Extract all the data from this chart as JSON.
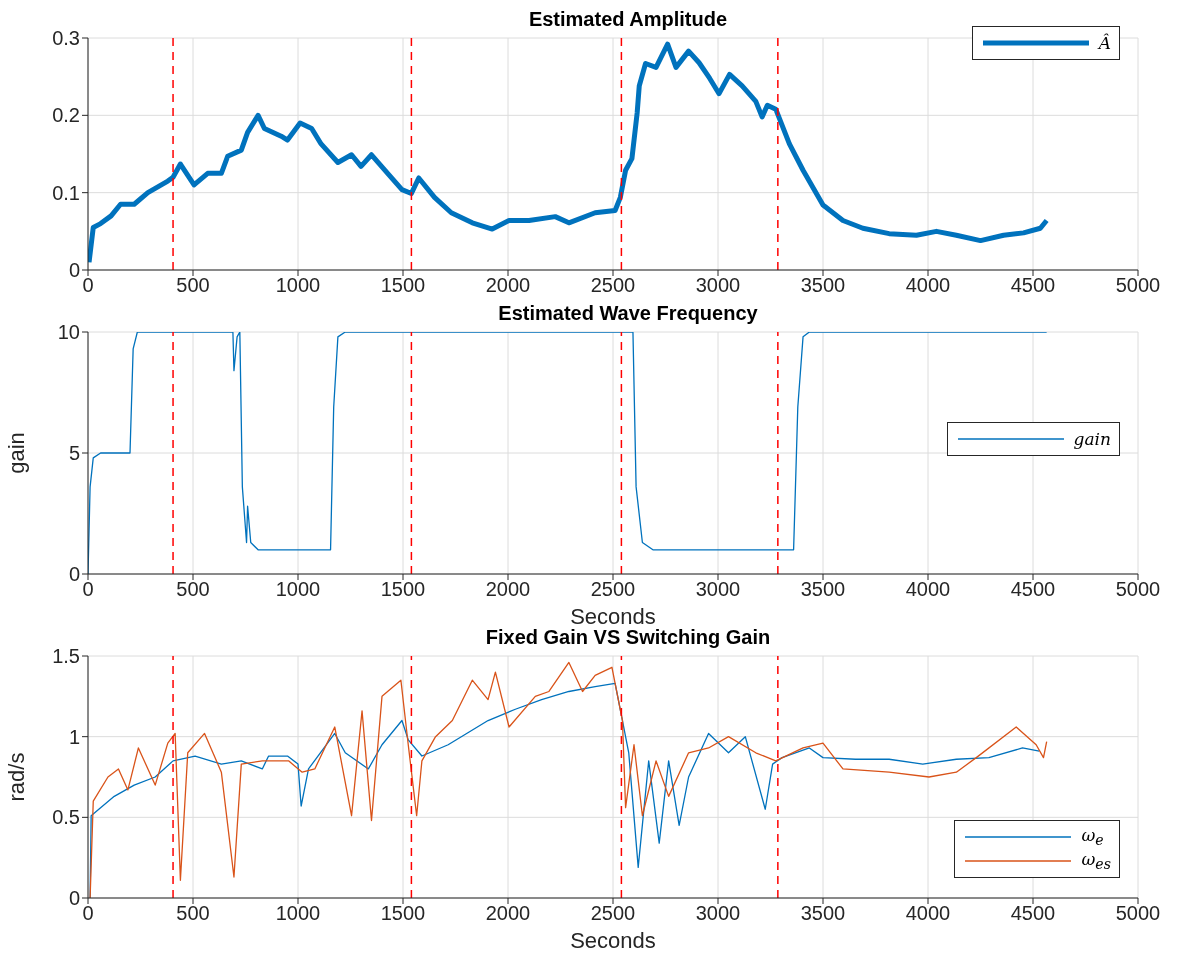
{
  "chart_data": [
    {
      "type": "line",
      "title": "Estimated Amplitude",
      "xlim": [
        0,
        5000
      ],
      "xticks": [
        0,
        500,
        1000,
        1500,
        2000,
        2500,
        3000,
        3500,
        4000,
        4500,
        5000
      ],
      "ylim": [
        0,
        0.3
      ],
      "yticks": [
        0,
        0.1,
        0.2,
        0.3
      ],
      "grid": true,
      "legend": "top right",
      "line_style": "solid",
      "ref_lines": [
        {
          "axis": "x",
          "value": 405,
          "color": "#ff0000",
          "line_style": "dashed"
        },
        {
          "axis": "x",
          "value": 1540,
          "color": "#ff0000",
          "line_style": "dashed"
        },
        {
          "axis": "x",
          "value": 2540,
          "color": "#ff0000",
          "line_style": "dashed"
        },
        {
          "axis": "x",
          "value": 3285,
          "color": "#ff0000",
          "line_style": "dashed"
        }
      ],
      "series": [
        {
          "name": "Â",
          "color": "#0072bd",
          "x": [
            5,
            25,
            60,
            110,
            155,
            220,
            285,
            380,
            405,
            440,
            505,
            570,
            635,
            665,
            730,
            760,
            810,
            840,
            920,
            950,
            1010,
            1065,
            1110,
            1190,
            1255,
            1300,
            1350,
            1430,
            1495,
            1540,
            1575,
            1650,
            1730,
            1830,
            1925,
            2005,
            2100,
            2225,
            2290,
            2415,
            2510,
            2535,
            2560,
            2590,
            2615,
            2625,
            2655,
            2705,
            2760,
            2800,
            2860,
            2910,
            2960,
            3005,
            3055,
            3115,
            3180,
            3210,
            3235,
            3275,
            3340,
            3405,
            3500,
            3595,
            3690,
            3815,
            3945,
            4040,
            4135,
            4250,
            4360,
            4455,
            4535,
            4565
          ],
          "values": [
            0.01,
            0.055,
            0.06,
            0.07,
            0.085,
            0.085,
            0.1,
            0.115,
            0.12,
            0.137,
            0.11,
            0.125,
            0.125,
            0.147,
            0.155,
            0.178,
            0.2,
            0.183,
            0.173,
            0.168,
            0.19,
            0.183,
            0.163,
            0.139,
            0.149,
            0.134,
            0.149,
            0.124,
            0.104,
            0.099,
            0.119,
            0.094,
            0.074,
            0.061,
            0.053,
            0.064,
            0.064,
            0.069,
            0.061,
            0.074,
            0.077,
            0.094,
            0.129,
            0.144,
            0.203,
            0.238,
            0.267,
            0.262,
            0.292,
            0.262,
            0.283,
            0.268,
            0.248,
            0.228,
            0.253,
            0.238,
            0.218,
            0.198,
            0.213,
            0.208,
            0.163,
            0.129,
            0.084,
            0.064,
            0.054,
            0.047,
            0.045,
            0.05,
            0.045,
            0.038,
            0.045,
            0.048,
            0.054,
            0.064
          ]
        }
      ]
    },
    {
      "type": "line",
      "title": "Estimated Wave Frequency",
      "xlabel": "Seconds",
      "ylabel": "gain",
      "xlim": [
        0,
        5000
      ],
      "xticks": [
        0,
        500,
        1000,
        1500,
        2000,
        2500,
        3000,
        3500,
        4000,
        4500,
        5000
      ],
      "ylim": [
        0,
        10
      ],
      "yticks": [
        0,
        5,
        10
      ],
      "grid": true,
      "legend": "right",
      "line_style": "solid",
      "ref_lines": [
        {
          "axis": "x",
          "value": 405,
          "color": "#ff0000",
          "line_style": "dashed"
        },
        {
          "axis": "x",
          "value": 1540,
          "color": "#ff0000",
          "line_style": "dashed"
        },
        {
          "axis": "x",
          "value": 2540,
          "color": "#ff0000",
          "line_style": "dashed"
        },
        {
          "axis": "x",
          "value": 3285,
          "color": "#ff0000",
          "line_style": "dashed"
        }
      ],
      "series": [
        {
          "name": "gain",
          "color": "#0072bd",
          "x": [
            0,
            10,
            25,
            60,
            200,
            215,
            235,
            690,
            695,
            710,
            723,
            735,
            755,
            760,
            775,
            810,
            1155,
            1170,
            1190,
            1225,
            2595,
            2610,
            2640,
            2690,
            3360,
            3380,
            3405,
            3435,
            4565
          ],
          "values": [
            0,
            3.6,
            4.8,
            5,
            5,
            9.3,
            10,
            10,
            8.4,
            9.8,
            10,
            3.6,
            1.3,
            2.8,
            1.3,
            1,
            1,
            6.9,
            9.8,
            10,
            10,
            3.6,
            1.3,
            1,
            1,
            6.9,
            9.8,
            10,
            10
          ]
        }
      ]
    },
    {
      "type": "line",
      "title": "Fixed Gain VS Switching Gain",
      "xlabel": "Seconds",
      "ylabel": "rad/s",
      "xlim": [
        0,
        5000
      ],
      "xticks": [
        0,
        500,
        1000,
        1500,
        2000,
        2500,
        3000,
        3500,
        4000,
        4500,
        5000
      ],
      "ylim": [
        0,
        1.5
      ],
      "yticks": [
        0,
        0.5,
        1,
        1.5
      ],
      "grid": true,
      "legend": "bottom right",
      "line_style": "solid",
      "ref_lines": [
        {
          "axis": "x",
          "value": 405,
          "color": "#ff0000",
          "line_style": "dashed"
        },
        {
          "axis": "x",
          "value": 1540,
          "color": "#ff0000",
          "line_style": "dashed"
        },
        {
          "axis": "x",
          "value": 2540,
          "color": "#ff0000",
          "line_style": "dashed"
        },
        {
          "axis": "x",
          "value": 3285,
          "color": "#ff0000",
          "line_style": "dashed"
        }
      ],
      "series": [
        {
          "name": "ω$_{e}$",
          "color": "#0072bd",
          "x": [
            10,
            15,
            60,
            125,
            220,
            320,
            405,
            510,
            635,
            730,
            830,
            860,
            950,
            1000,
            1015,
            1050,
            1175,
            1225,
            1335,
            1400,
            1495,
            1525,
            1590,
            1715,
            1905,
            2035,
            2160,
            2290,
            2415,
            2510,
            2545,
            2575,
            2620,
            2670,
            2720,
            2765,
            2815,
            2860,
            2955,
            3050,
            3130,
            3225,
            3260,
            3305,
            3435,
            3500,
            3655,
            3815,
            3975,
            4135,
            4290,
            4450,
            4530
          ],
          "values": [
            0,
            0.51,
            0.56,
            0.63,
            0.7,
            0.75,
            0.85,
            0.88,
            0.83,
            0.85,
            0.8,
            0.88,
            0.88,
            0.83,
            0.57,
            0.8,
            1.02,
            0.9,
            0.8,
            0.95,
            1.1,
            0.98,
            0.88,
            0.95,
            1.1,
            1.17,
            1.23,
            1.28,
            1.31,
            1.33,
            1.1,
            0.9,
            0.19,
            0.85,
            0.34,
            0.85,
            0.45,
            0.75,
            1.02,
            0.9,
            1.0,
            0.55,
            0.83,
            0.87,
            0.93,
            0.87,
            0.86,
            0.86,
            0.83,
            0.86,
            0.87,
            0.93,
            0.91
          ]
        },
        {
          "name": "ω$_{es}$",
          "color": "#d95319",
          "x": [
            10,
            25,
            95,
            145,
            190,
            240,
            320,
            380,
            415,
            440,
            475,
            555,
            635,
            695,
            730,
            830,
            955,
            1020,
            1080,
            1175,
            1255,
            1305,
            1350,
            1400,
            1490,
            1525,
            1565,
            1590,
            1655,
            1735,
            1830,
            1905,
            1940,
            2005,
            2130,
            2195,
            2290,
            2355,
            2415,
            2495,
            2545,
            2560,
            2600,
            2640,
            2705,
            2765,
            2860,
            2955,
            3050,
            3180,
            3275,
            3405,
            3500,
            3595,
            3815,
            4005,
            4135,
            4230,
            4420,
            4515,
            4550,
            4565
          ],
          "values": [
            0,
            0.6,
            0.75,
            0.8,
            0.67,
            0.93,
            0.7,
            0.96,
            1.02,
            0.11,
            0.9,
            1.02,
            0.78,
            0.13,
            0.83,
            0.85,
            0.85,
            0.78,
            0.8,
            1.06,
            0.51,
            1.16,
            0.48,
            1.25,
            1.35,
            0.95,
            0.51,
            0.85,
            1.0,
            1.1,
            1.35,
            1.23,
            1.4,
            1.06,
            1.25,
            1.28,
            1.46,
            1.28,
            1.38,
            1.43,
            1.1,
            0.56,
            0.95,
            0.51,
            0.85,
            0.63,
            0.9,
            0.93,
            1.0,
            0.9,
            0.85,
            0.93,
            0.96,
            0.8,
            0.78,
            0.75,
            0.78,
            0.87,
            1.06,
            0.95,
            0.87,
            0.97
          ]
        }
      ]
    }
  ]
}
